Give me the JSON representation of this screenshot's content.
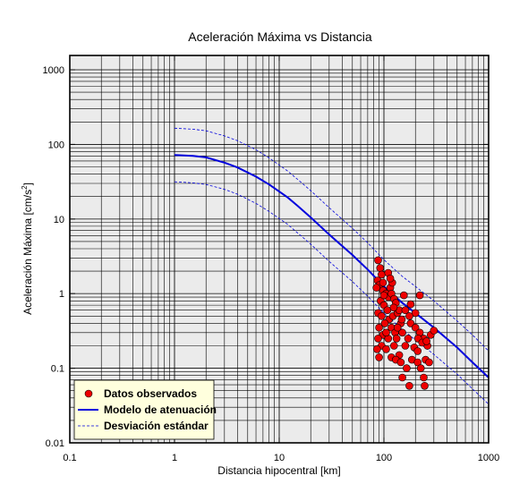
{
  "chart_data": {
    "type": "scatter",
    "title": "Aceleración Máxima vs Distancia",
    "xlabel": "Distancia hipocentral [km]",
    "ylabel_main": "Aceleración Máxima [cm/s",
    "ylabel_sup": "2",
    "ylabel_end": "]",
    "x_scale": "log",
    "y_scale": "log",
    "xlim": [
      0.1,
      1000
    ],
    "ylim": [
      0.01,
      1500
    ],
    "x_ticks": [
      {
        "value": 0.1,
        "label": "0.1"
      },
      {
        "value": 1,
        "label": "1"
      },
      {
        "value": 10,
        "label": "10"
      },
      {
        "value": 100,
        "label": "100"
      },
      {
        "value": 1000,
        "label": "1000"
      }
    ],
    "y_ticks": [
      {
        "value": 0.01,
        "label": "0.01"
      },
      {
        "value": 0.1,
        "label": "0.1"
      },
      {
        "value": 1,
        "label": "1"
      },
      {
        "value": 10,
        "label": "10"
      },
      {
        "value": 100,
        "label": "100"
      },
      {
        "value": 1000,
        "label": "1000"
      }
    ],
    "grid": true,
    "background_color": "#ebebeb",
    "legend_position": "bottom-left",
    "legend_background": "#ffffdd",
    "series": [
      {
        "name": "Datos observados",
        "kind": "scatter",
        "color": "#ee0000",
        "points": [
          [
            88,
            2.8
          ],
          [
            92,
            2.2
          ],
          [
            95,
            1.8
          ],
          [
            87,
            1.5
          ],
          [
            90,
            1.3
          ],
          [
            98,
            1.1
          ],
          [
            85,
            1.2
          ],
          [
            105,
            1.0
          ],
          [
            110,
            0.9
          ],
          [
            115,
            1.2
          ],
          [
            120,
            1.4
          ],
          [
            118,
            1.0
          ],
          [
            125,
            0.85
          ],
          [
            130,
            0.75
          ],
          [
            93,
            0.8
          ],
          [
            100,
            0.7
          ],
          [
            108,
            0.6
          ],
          [
            88,
            0.55
          ],
          [
            95,
            0.5
          ],
          [
            112,
            0.45
          ],
          [
            122,
            0.5
          ],
          [
            135,
            0.55
          ],
          [
            140,
            0.6
          ],
          [
            90,
            0.35
          ],
          [
            102,
            0.4
          ],
          [
            118,
            0.35
          ],
          [
            128,
            0.3
          ],
          [
            145,
            0.4
          ],
          [
            98,
            0.28
          ],
          [
            110,
            0.25
          ],
          [
            132,
            0.25
          ],
          [
            150,
            0.3
          ],
          [
            160,
            0.2
          ],
          [
            88,
            0.25
          ],
          [
            95,
            0.2
          ],
          [
            105,
            0.18
          ],
          [
            125,
            0.2
          ],
          [
            140,
            0.15
          ],
          [
            170,
            0.25
          ],
          [
            180,
            0.4
          ],
          [
            200,
            0.35
          ],
          [
            220,
            0.3
          ],
          [
            240,
            0.25
          ],
          [
            260,
            0.2
          ],
          [
            280,
            0.28
          ],
          [
            300,
            0.32
          ],
          [
            110,
            1.9
          ],
          [
            115,
            1.6
          ],
          [
            98,
            1.4
          ],
          [
            86,
            0.18
          ],
          [
            90,
            0.14
          ],
          [
            118,
            0.14
          ],
          [
            130,
            0.13
          ],
          [
            145,
            0.12
          ],
          [
            165,
            0.1
          ],
          [
            185,
            0.13
          ],
          [
            210,
            0.12
          ],
          [
            225,
            0.1
          ],
          [
            250,
            0.13
          ],
          [
            270,
            0.12
          ],
          [
            150,
            0.075
          ],
          [
            175,
            0.058
          ],
          [
            240,
            0.075
          ],
          [
            245,
            0.058
          ],
          [
            220,
            0.95
          ],
          [
            200,
            0.55
          ],
          [
            175,
            0.5
          ],
          [
            155,
            0.95
          ],
          [
            135,
            0.35
          ],
          [
            148,
            0.45
          ],
          [
            212,
            0.25
          ],
          [
            232,
            0.22
          ],
          [
            255,
            0.23
          ],
          [
            195,
            0.19
          ],
          [
            105,
            0.3
          ],
          [
            100,
            0.95
          ],
          [
            124,
            0.65
          ],
          [
            160,
            0.6
          ],
          [
            180,
            0.72
          ],
          [
            210,
            0.17
          ]
        ]
      },
      {
        "name": "Modelo de atenuación",
        "kind": "line",
        "color": "#0000dd",
        "points": [
          [
            1,
            72
          ],
          [
            1.5,
            70
          ],
          [
            2,
            67
          ],
          [
            3,
            57
          ],
          [
            4,
            49
          ],
          [
            6,
            37
          ],
          [
            8,
            29
          ],
          [
            12,
            19.5
          ],
          [
            15,
            15
          ],
          [
            20,
            10.5
          ],
          [
            30,
            6.2
          ],
          [
            50,
            3.3
          ],
          [
            70,
            2.1
          ],
          [
            100,
            1.25
          ],
          [
            150,
            0.75
          ],
          [
            200,
            0.55
          ],
          [
            300,
            0.35
          ],
          [
            500,
            0.19
          ],
          [
            700,
            0.12
          ],
          [
            1000,
            0.075
          ]
        ]
      },
      {
        "name": "Desviación estándar",
        "kind": "line",
        "color": "#0000dd",
        "dashed": true,
        "points": [
          [
            1,
            165
          ],
          [
            1.5,
            160
          ],
          [
            2,
            152
          ],
          [
            3,
            130
          ],
          [
            4,
            112
          ],
          [
            6,
            85
          ],
          [
            8,
            66
          ],
          [
            12,
            44
          ],
          [
            15,
            34
          ],
          [
            20,
            24
          ],
          [
            30,
            14.2
          ],
          [
            50,
            7.5
          ],
          [
            70,
            4.8
          ],
          [
            100,
            2.85
          ],
          [
            150,
            1.7
          ],
          [
            200,
            1.25
          ],
          [
            300,
            0.8
          ],
          [
            500,
            0.43
          ],
          [
            700,
            0.28
          ],
          [
            1000,
            0.17
          ]
        ]
      },
      {
        "name": "Desviación estándar (inferior)",
        "kind": "line",
        "color": "#0000dd",
        "dashed": true,
        "show_in_legend": false,
        "points": [
          [
            1,
            31.5
          ],
          [
            1.5,
            30.5
          ],
          [
            2,
            29
          ],
          [
            3,
            25
          ],
          [
            4,
            21.5
          ],
          [
            6,
            16.2
          ],
          [
            8,
            12.6
          ],
          [
            12,
            8.5
          ],
          [
            15,
            6.5
          ],
          [
            20,
            4.6
          ],
          [
            30,
            2.7
          ],
          [
            50,
            1.45
          ],
          [
            70,
            0.92
          ],
          [
            100,
            0.55
          ],
          [
            150,
            0.33
          ],
          [
            200,
            0.24
          ],
          [
            300,
            0.153
          ],
          [
            500,
            0.083
          ],
          [
            700,
            0.053
          ],
          [
            1000,
            0.033
          ]
        ]
      }
    ]
  }
}
